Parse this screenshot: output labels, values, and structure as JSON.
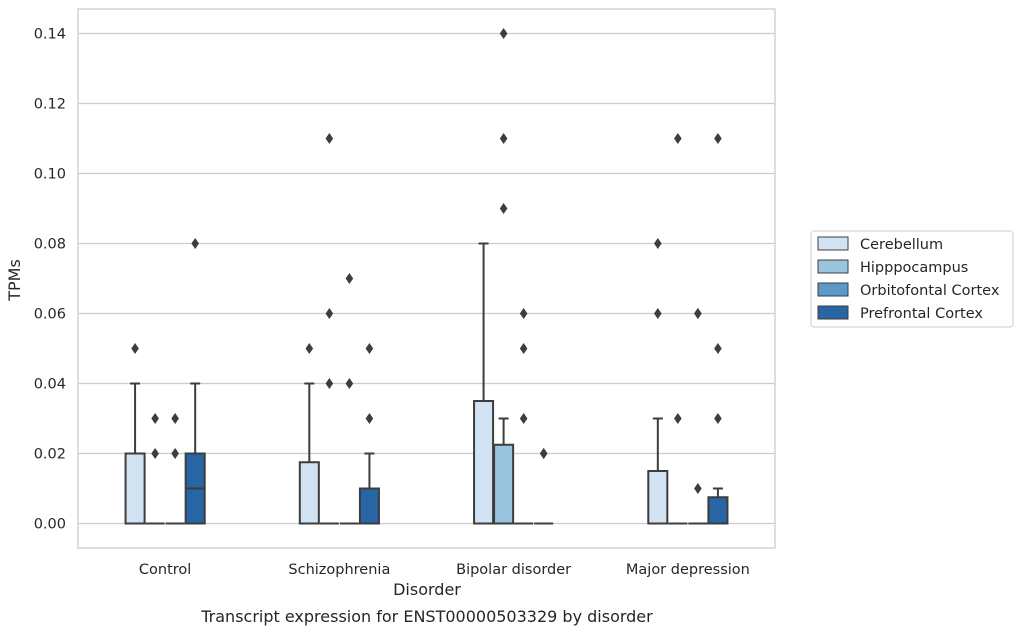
{
  "chart_data": {
    "type": "boxplot",
    "caption": "Transcript expression for ENST00000503329 by disorder",
    "xlabel": "Disorder",
    "ylabel": "TPMs",
    "ylim": [
      -0.007,
      0.147
    ],
    "yticks": [
      0.0,
      0.02,
      0.04,
      0.06,
      0.08,
      0.1,
      0.12,
      0.14
    ],
    "ytick_labels": [
      "0.00",
      "0.02",
      "0.04",
      "0.06",
      "0.08",
      "0.10",
      "0.12",
      "0.14"
    ],
    "grid": "horizontal",
    "legend_position": "right",
    "categories": [
      "Control",
      "Schizophrenia",
      "Bipolar disorder",
      "Major depression"
    ],
    "series": [
      {
        "name": "Cerebellum",
        "color": "#d1e2f2",
        "boxes": [
          {
            "q1": 0.0,
            "median": 0.0,
            "q3": 0.02,
            "whisker_low": 0.0,
            "whisker_high": 0.04,
            "outliers": [
              0.05
            ]
          },
          {
            "q1": 0.0,
            "median": 0.0,
            "q3": 0.0175,
            "whisker_low": 0.0,
            "whisker_high": 0.04,
            "outliers": [
              0.05
            ]
          },
          {
            "q1": 0.0,
            "median": 0.0,
            "q3": 0.035,
            "whisker_low": 0.0,
            "whisker_high": 0.08,
            "outliers": []
          },
          {
            "q1": 0.0,
            "median": 0.0,
            "q3": 0.015,
            "whisker_low": 0.0,
            "whisker_high": 0.03,
            "outliers": [
              0.06,
              0.08
            ]
          }
        ]
      },
      {
        "name": "Hipppocampus",
        "color": "#9ac3dd",
        "boxes": [
          {
            "q1": 0.0,
            "median": 0.0,
            "q3": 0.0,
            "whisker_low": 0.0,
            "whisker_high": 0.0,
            "outliers": [
              0.02,
              0.03
            ]
          },
          {
            "q1": 0.0,
            "median": 0.0,
            "q3": 0.0,
            "whisker_low": 0.0,
            "whisker_high": 0.0,
            "outliers": [
              0.04,
              0.06,
              0.11
            ]
          },
          {
            "q1": 0.0,
            "median": 0.0,
            "q3": 0.0225,
            "whisker_low": 0.0,
            "whisker_high": 0.03,
            "outliers": [
              0.09,
              0.11,
              0.14
            ]
          },
          {
            "q1": 0.0,
            "median": 0.0,
            "q3": 0.0,
            "whisker_low": 0.0,
            "whisker_high": 0.0,
            "outliers": [
              0.03,
              0.11
            ]
          }
        ]
      },
      {
        "name": "Orbitofontal Cortex",
        "color": "#5b9ac8",
        "boxes": [
          {
            "q1": 0.0,
            "median": 0.0,
            "q3": 0.0,
            "whisker_low": 0.0,
            "whisker_high": 0.0,
            "outliers": [
              0.02,
              0.03
            ]
          },
          {
            "q1": 0.0,
            "median": 0.0,
            "q3": 0.0,
            "whisker_low": 0.0,
            "whisker_high": 0.0,
            "outliers": [
              0.04,
              0.07
            ]
          },
          {
            "q1": 0.0,
            "median": 0.0,
            "q3": 0.0,
            "whisker_low": 0.0,
            "whisker_high": 0.0,
            "outliers": [
              0.03,
              0.05,
              0.06
            ]
          },
          {
            "q1": 0.0,
            "median": 0.0,
            "q3": 0.0,
            "whisker_low": 0.0,
            "whisker_high": 0.0,
            "outliers": [
              0.01,
              0.06,
              0.06
            ]
          }
        ]
      },
      {
        "name": "Prefrontal Cortex",
        "color": "#2765a4",
        "boxes": [
          {
            "q1": 0.0,
            "median": 0.01,
            "q3": 0.02,
            "whisker_low": 0.0,
            "whisker_high": 0.04,
            "outliers": [
              0.08
            ]
          },
          {
            "q1": 0.0,
            "median": 0.0,
            "q3": 0.01,
            "whisker_low": 0.0,
            "whisker_high": 0.02,
            "outliers": [
              0.03,
              0.05
            ]
          },
          {
            "q1": 0.0,
            "median": 0.0,
            "q3": 0.0,
            "whisker_low": 0.0,
            "whisker_high": 0.0,
            "outliers": [
              0.02,
              0.02
            ]
          },
          {
            "q1": 0.0,
            "median": 0.0,
            "q3": 0.0075,
            "whisker_low": 0.0,
            "whisker_high": 0.01,
            "outliers": [
              0.03,
              0.05,
              0.11
            ]
          }
        ]
      }
    ]
  }
}
